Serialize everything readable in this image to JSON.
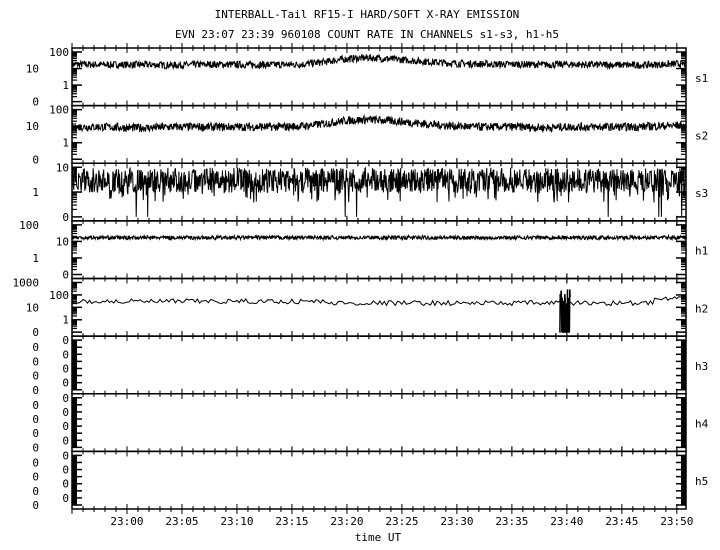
{
  "chart_data": {
    "type": "line",
    "title": "INTERBALL-Tail RF15-I HARD/SOFT X-RAY EMISSION",
    "subtitle": "EVN 23:07 23:39 960108  COUNT RATE IN CHANNELS s1-s3, h1-h5",
    "xlabel": "time UT",
    "xlim": [
      "22:55",
      "23:50:50"
    ],
    "x_ticks": [
      "23:00",
      "23:05",
      "23:10",
      "23:15",
      "23:20",
      "23:25",
      "23:30",
      "23:35",
      "23:40",
      "23:45",
      "23:50"
    ],
    "y_scale": "log",
    "grid": false,
    "colors": {
      "line": "#000000",
      "background": "#ffffff"
    },
    "x": [
      "22:56",
      "22:58",
      "23:00",
      "23:02",
      "23:04",
      "23:06",
      "23:08",
      "23:10",
      "23:12",
      "23:14",
      "23:16",
      "23:18",
      "23:20",
      "23:22",
      "23:24",
      "23:26",
      "23:28",
      "23:30",
      "23:32",
      "23:34",
      "23:36",
      "23:38",
      "23:40",
      "23:42",
      "23:44",
      "23:46",
      "23:48",
      "23:50"
    ],
    "panels": [
      {
        "name": "s1",
        "y_ticks": [
          "100",
          "10",
          "1",
          "0"
        ],
        "values": [
          18,
          17,
          17,
          17,
          16,
          17,
          18,
          17,
          17,
          17,
          18,
          25,
          38,
          45,
          38,
          30,
          24,
          20,
          19,
          18,
          18,
          17,
          18,
          17,
          17,
          16,
          17,
          19
        ]
      },
      {
        "name": "s2",
        "y_ticks": [
          "100",
          "10",
          "1",
          "0"
        ],
        "values": [
          9,
          9,
          8,
          8,
          9,
          9,
          9,
          9,
          9,
          9,
          10,
          14,
          22,
          25,
          21,
          16,
          12,
          10,
          9,
          9,
          9,
          8,
          9,
          9,
          9,
          9,
          10,
          11
        ]
      },
      {
        "name": "s3",
        "y_ticks": [
          "10",
          "1",
          "0"
        ],
        "values": [
          3,
          3,
          3,
          3,
          3,
          3,
          3,
          3,
          3,
          3,
          3,
          3,
          3,
          3,
          3,
          3,
          3,
          3,
          3,
          3,
          3,
          3,
          3,
          3,
          3,
          3,
          3,
          3
        ]
      },
      {
        "name": "h1",
        "y_ticks": [
          "100",
          "10",
          "1",
          "0"
        ],
        "values": [
          17,
          17,
          17,
          17,
          17,
          17,
          17,
          17,
          17,
          17,
          17,
          17,
          17,
          17,
          17,
          17,
          17,
          17,
          17,
          17,
          17,
          17,
          17,
          17,
          17,
          17,
          17,
          17
        ]
      },
      {
        "name": "h2",
        "y_ticks": [
          "1000",
          "100",
          "10",
          "1",
          "0"
        ],
        "values": [
          30,
          30,
          30,
          30,
          30,
          30,
          30,
          30,
          30,
          30,
          30,
          22,
          22,
          22,
          22,
          22,
          22,
          22,
          22,
          22,
          22,
          22,
          22,
          22,
          22,
          22,
          45,
          45
        ],
        "burst": {
          "start": "23:39:20",
          "end": "23:40:20",
          "max": 300,
          "min": 0
        }
      },
      {
        "name": "h3",
        "y_ticks": [
          "0",
          "0",
          "0",
          "0",
          "0",
          "0",
          "0",
          "0"
        ],
        "values": []
      },
      {
        "name": "h4",
        "y_ticks": [
          "0",
          "0",
          "0",
          "0",
          "0",
          "0",
          "0",
          "0"
        ],
        "values": []
      },
      {
        "name": "h5",
        "y_ticks": [
          "0",
          "0",
          "0",
          "0",
          "0",
          "0",
          "0",
          "0"
        ],
        "values": []
      }
    ]
  }
}
